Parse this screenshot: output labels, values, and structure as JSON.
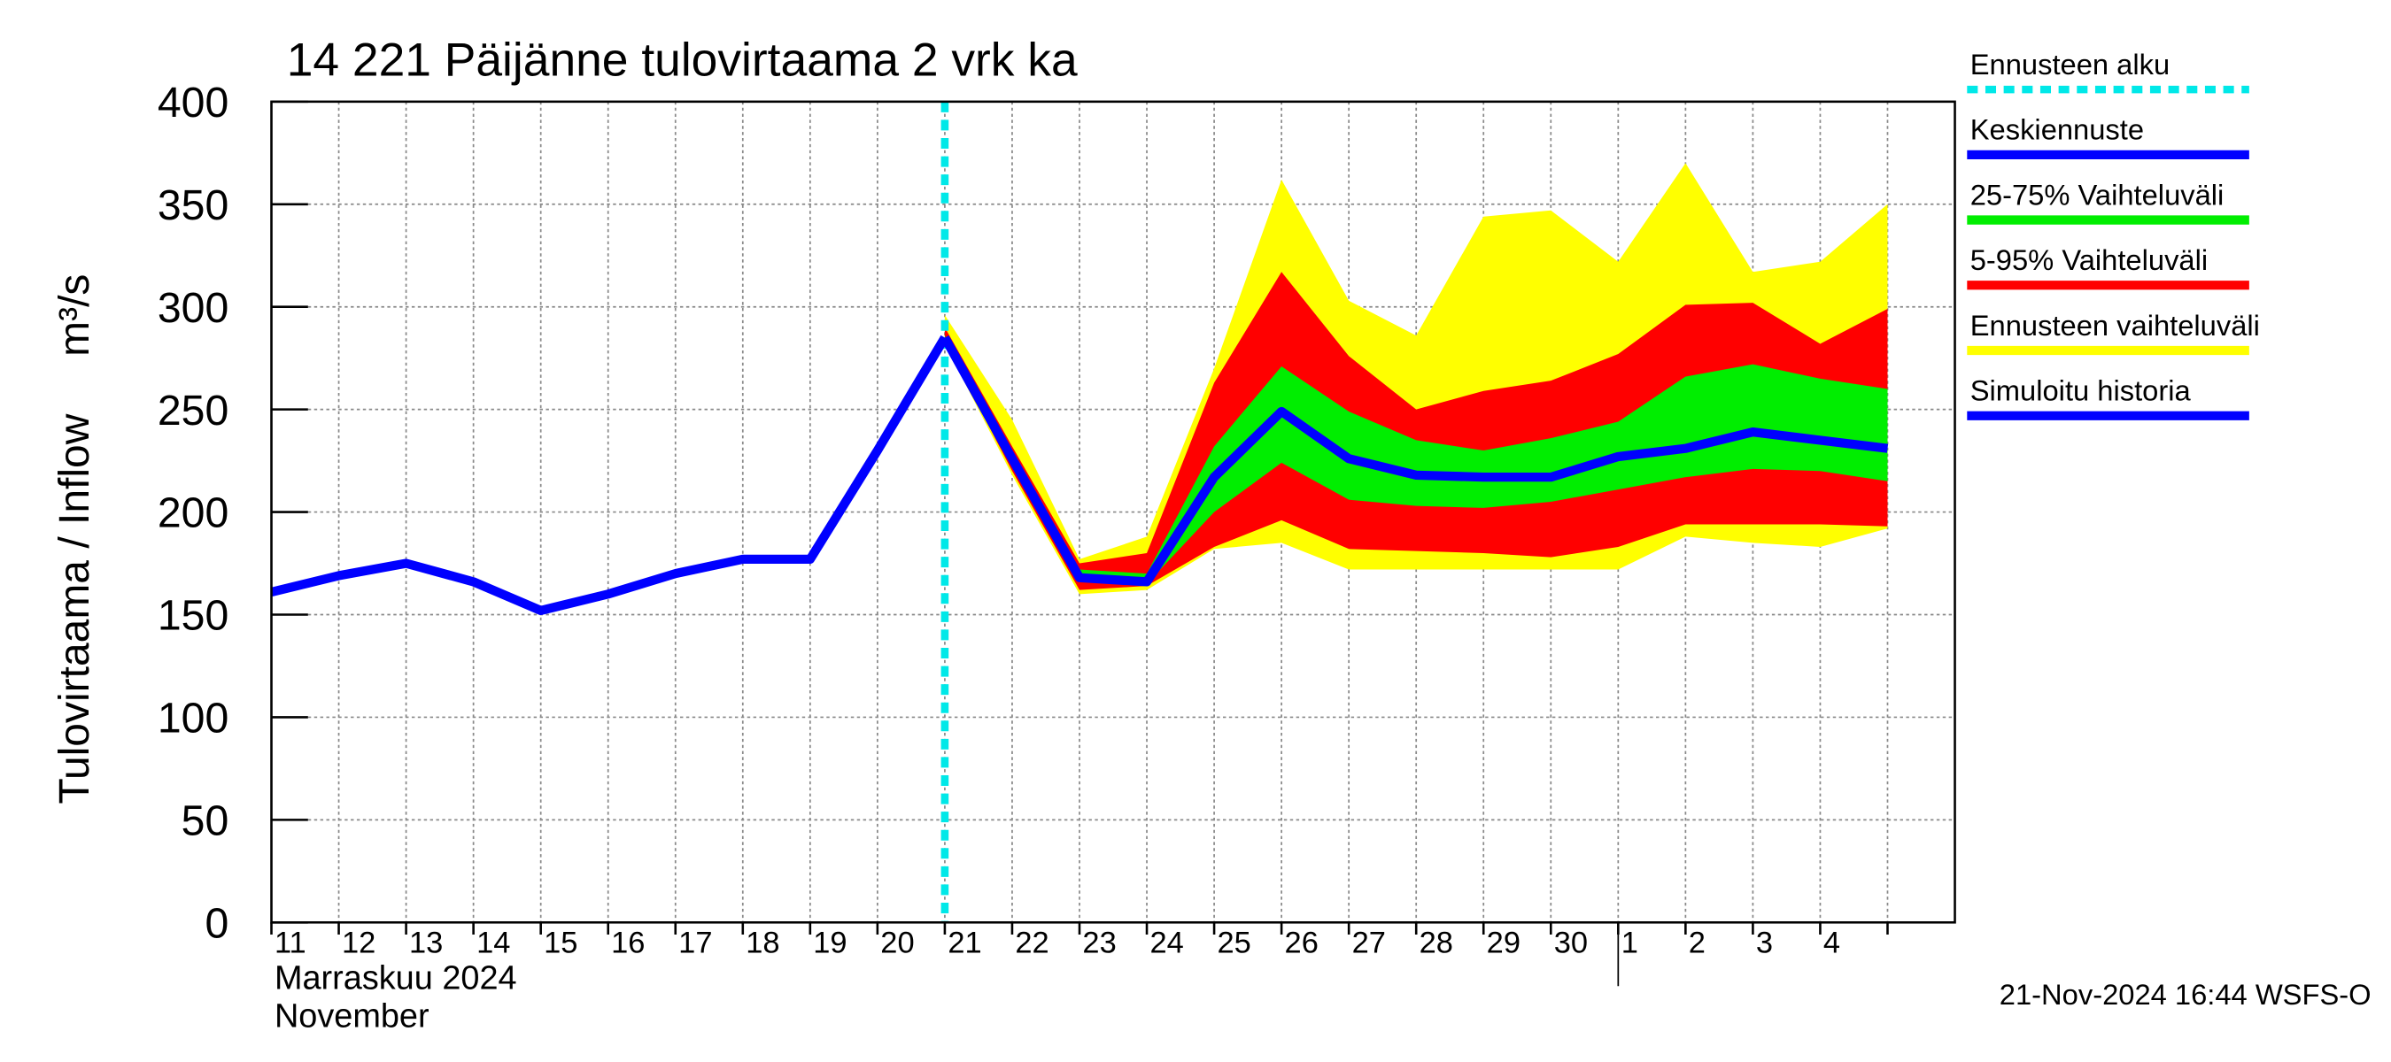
{
  "chart_data": {
    "type": "band-line",
    "title": "14 221 Päijänne tulovirtaama 2 vrk ka",
    "ylabel": "Tulovirtaama / Inflow",
    "yunit": "m³/s",
    "month_label": "Marraskuu 2024",
    "month_label_en": "November",
    "footer": "21-Nov-2024 16:44 WSFS-O",
    "categories": [
      "11",
      "12",
      "13",
      "14",
      "15",
      "16",
      "17",
      "18",
      "19",
      "20",
      "21",
      "22",
      "23",
      "24",
      "25",
      "26",
      "27",
      "28",
      "29",
      "30",
      "1",
      "2",
      "3",
      "4",
      null
    ],
    "month_break": "1",
    "ylim": [
      0,
      400
    ],
    "yticks": [
      0,
      50,
      100,
      150,
      200,
      250,
      300,
      350,
      400
    ],
    "grid": true,
    "forecast_marker": {
      "name": "Ennusteen alku",
      "color": "#00e8e8",
      "at": "21"
    },
    "series": [
      {
        "name": "Keskiennuste",
        "kind": "line",
        "color": "#0000ff",
        "values": [
          null,
          null,
          null,
          null,
          null,
          null,
          null,
          null,
          null,
          null,
          285,
          226,
          168,
          166,
          217,
          249,
          226,
          218,
          217,
          217,
          227,
          231,
          239,
          235,
          231
        ]
      },
      {
        "name": "25-75% Vaihteluväli",
        "kind": "band",
        "color": "#00ee00",
        "lower": [
          null,
          null,
          null,
          null,
          null,
          null,
          null,
          null,
          null,
          null,
          284,
          224,
          166,
          165,
          200,
          224,
          206,
          203,
          202,
          205,
          211,
          217,
          221,
          220,
          215
        ],
        "values": [
          null,
          null,
          null,
          null,
          null,
          null,
          null,
          null,
          null,
          null,
          286,
          228,
          172,
          170,
          232,
          271,
          249,
          235,
          230,
          236,
          244,
          266,
          272,
          265,
          260
        ]
      },
      {
        "name": "5-95% Vaihteluväli",
        "kind": "band",
        "color": "#ff0000",
        "lower": [
          null,
          null,
          null,
          null,
          null,
          null,
          null,
          null,
          null,
          null,
          283,
          220,
          162,
          164,
          183,
          196,
          182,
          181,
          180,
          178,
          183,
          194,
          194,
          194,
          193
        ],
        "values": [
          null,
          null,
          null,
          null,
          null,
          null,
          null,
          null,
          null,
          null,
          290,
          232,
          175,
          180,
          263,
          317,
          276,
          250,
          259,
          264,
          277,
          301,
          302,
          282,
          299
        ]
      },
      {
        "name": "Ennusteen vaihteluväli",
        "kind": "band",
        "color": "#ffff00",
        "lower": [
          null,
          null,
          null,
          null,
          null,
          null,
          null,
          null,
          null,
          null,
          282,
          218,
          160,
          162,
          182,
          185,
          172,
          172,
          172,
          172,
          172,
          188,
          185,
          183,
          192
        ],
        "values": [
          null,
          null,
          null,
          null,
          null,
          null,
          null,
          null,
          null,
          null,
          296,
          245,
          177,
          188,
          270,
          362,
          303,
          286,
          344,
          347,
          322,
          370,
          317,
          322,
          350
        ]
      },
      {
        "name": "Simuloitu historia",
        "kind": "line",
        "color": "#0000ff",
        "values": [
          161,
          169,
          175,
          166,
          152,
          160,
          170,
          177,
          177,
          230,
          285,
          null,
          null,
          null,
          null,
          null,
          null,
          null,
          null,
          null,
          null,
          null,
          null,
          null,
          null
        ]
      }
    ]
  }
}
